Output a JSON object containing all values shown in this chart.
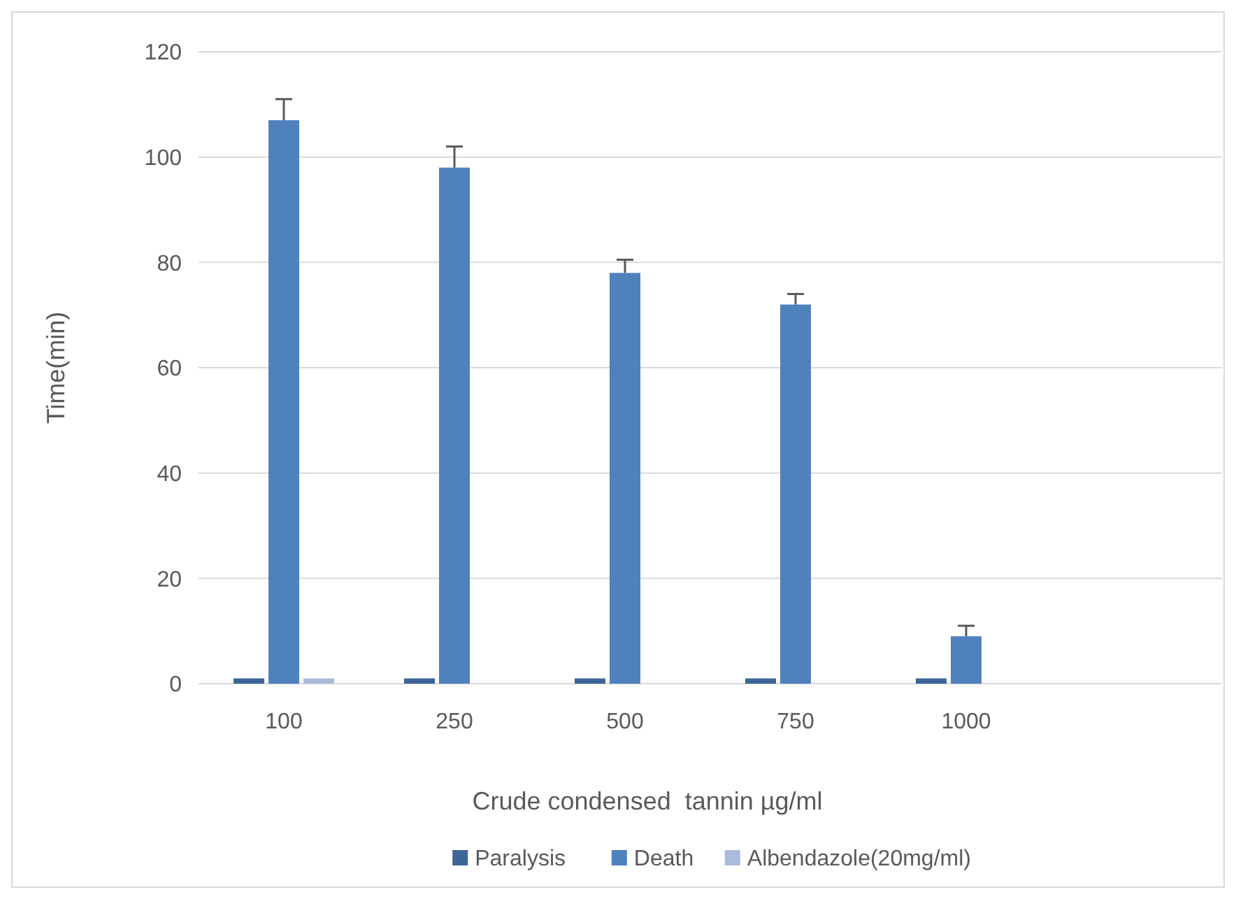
{
  "chart_data": {
    "type": "bar",
    "xlabel": "Crude condensed  tannin µg/ml",
    "ylabel": "Time(min)",
    "categories": [
      "100",
      "250",
      "500",
      "750",
      "1000",
      null
    ],
    "series": [
      {
        "name": "Paralysis",
        "color": "#3d6597",
        "values": [
          1,
          1,
          1,
          1,
          1,
          null
        ]
      },
      {
        "name": "Death",
        "color": "#4f81bd",
        "values": [
          107,
          98,
          78,
          72,
          9,
          null
        ],
        "errors": [
          4,
          4,
          2.5,
          2,
          2,
          null
        ]
      },
      {
        "name": "Albendazole(20mg/ml)",
        "color": "#a9bcdc",
        "values": [
          1,
          null,
          null,
          null,
          null,
          null
        ]
      }
    ],
    "ylim": [
      0,
      120
    ],
    "yticks": [
      0,
      20,
      40,
      60,
      80,
      100,
      120
    ],
    "grid": "y",
    "legend": "bottom"
  }
}
